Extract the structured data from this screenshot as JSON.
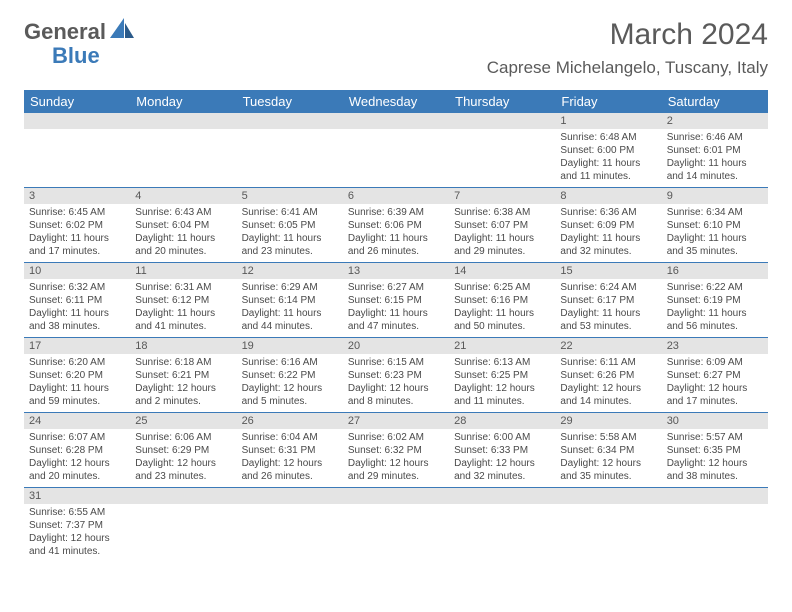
{
  "logo": {
    "part1": "General",
    "part2": "Blue"
  },
  "title": "March 2024",
  "location": "Caprese Michelangelo, Tuscany, Italy",
  "colors": {
    "header_bg": "#3b7ab8",
    "header_text": "#ffffff",
    "daynum_bg": "#e4e4e4",
    "text": "#4a4a4a",
    "border": "#3b7ab8"
  },
  "fonts": {
    "title_size": 30,
    "location_size": 17,
    "dayheader_size": 13,
    "cell_size": 10
  },
  "day_names": [
    "Sunday",
    "Monday",
    "Tuesday",
    "Wednesday",
    "Thursday",
    "Friday",
    "Saturday"
  ],
  "weeks": [
    [
      null,
      null,
      null,
      null,
      null,
      {
        "n": "1",
        "sr": "6:48 AM",
        "ss": "6:00 PM",
        "dl": "11 hours and 11 minutes."
      },
      {
        "n": "2",
        "sr": "6:46 AM",
        "ss": "6:01 PM",
        "dl": "11 hours and 14 minutes."
      }
    ],
    [
      {
        "n": "3",
        "sr": "6:45 AM",
        "ss": "6:02 PM",
        "dl": "11 hours and 17 minutes."
      },
      {
        "n": "4",
        "sr": "6:43 AM",
        "ss": "6:04 PM",
        "dl": "11 hours and 20 minutes."
      },
      {
        "n": "5",
        "sr": "6:41 AM",
        "ss": "6:05 PM",
        "dl": "11 hours and 23 minutes."
      },
      {
        "n": "6",
        "sr": "6:39 AM",
        "ss": "6:06 PM",
        "dl": "11 hours and 26 minutes."
      },
      {
        "n": "7",
        "sr": "6:38 AM",
        "ss": "6:07 PM",
        "dl": "11 hours and 29 minutes."
      },
      {
        "n": "8",
        "sr": "6:36 AM",
        "ss": "6:09 PM",
        "dl": "11 hours and 32 minutes."
      },
      {
        "n": "9",
        "sr": "6:34 AM",
        "ss": "6:10 PM",
        "dl": "11 hours and 35 minutes."
      }
    ],
    [
      {
        "n": "10",
        "sr": "6:32 AM",
        "ss": "6:11 PM",
        "dl": "11 hours and 38 minutes."
      },
      {
        "n": "11",
        "sr": "6:31 AM",
        "ss": "6:12 PM",
        "dl": "11 hours and 41 minutes."
      },
      {
        "n": "12",
        "sr": "6:29 AM",
        "ss": "6:14 PM",
        "dl": "11 hours and 44 minutes."
      },
      {
        "n": "13",
        "sr": "6:27 AM",
        "ss": "6:15 PM",
        "dl": "11 hours and 47 minutes."
      },
      {
        "n": "14",
        "sr": "6:25 AM",
        "ss": "6:16 PM",
        "dl": "11 hours and 50 minutes."
      },
      {
        "n": "15",
        "sr": "6:24 AM",
        "ss": "6:17 PM",
        "dl": "11 hours and 53 minutes."
      },
      {
        "n": "16",
        "sr": "6:22 AM",
        "ss": "6:19 PM",
        "dl": "11 hours and 56 minutes."
      }
    ],
    [
      {
        "n": "17",
        "sr": "6:20 AM",
        "ss": "6:20 PM",
        "dl": "11 hours and 59 minutes."
      },
      {
        "n": "18",
        "sr": "6:18 AM",
        "ss": "6:21 PM",
        "dl": "12 hours and 2 minutes."
      },
      {
        "n": "19",
        "sr": "6:16 AM",
        "ss": "6:22 PM",
        "dl": "12 hours and 5 minutes."
      },
      {
        "n": "20",
        "sr": "6:15 AM",
        "ss": "6:23 PM",
        "dl": "12 hours and 8 minutes."
      },
      {
        "n": "21",
        "sr": "6:13 AM",
        "ss": "6:25 PM",
        "dl": "12 hours and 11 minutes."
      },
      {
        "n": "22",
        "sr": "6:11 AM",
        "ss": "6:26 PM",
        "dl": "12 hours and 14 minutes."
      },
      {
        "n": "23",
        "sr": "6:09 AM",
        "ss": "6:27 PM",
        "dl": "12 hours and 17 minutes."
      }
    ],
    [
      {
        "n": "24",
        "sr": "6:07 AM",
        "ss": "6:28 PM",
        "dl": "12 hours and 20 minutes."
      },
      {
        "n": "25",
        "sr": "6:06 AM",
        "ss": "6:29 PM",
        "dl": "12 hours and 23 minutes."
      },
      {
        "n": "26",
        "sr": "6:04 AM",
        "ss": "6:31 PM",
        "dl": "12 hours and 26 minutes."
      },
      {
        "n": "27",
        "sr": "6:02 AM",
        "ss": "6:32 PM",
        "dl": "12 hours and 29 minutes."
      },
      {
        "n": "28",
        "sr": "6:00 AM",
        "ss": "6:33 PM",
        "dl": "12 hours and 32 minutes."
      },
      {
        "n": "29",
        "sr": "5:58 AM",
        "ss": "6:34 PM",
        "dl": "12 hours and 35 minutes."
      },
      {
        "n": "30",
        "sr": "5:57 AM",
        "ss": "6:35 PM",
        "dl": "12 hours and 38 minutes."
      }
    ],
    [
      {
        "n": "31",
        "sr": "6:55 AM",
        "ss": "7:37 PM",
        "dl": "12 hours and 41 minutes."
      },
      null,
      null,
      null,
      null,
      null,
      null
    ]
  ],
  "labels": {
    "sunrise": "Sunrise:",
    "sunset": "Sunset:",
    "daylight": "Daylight:"
  }
}
